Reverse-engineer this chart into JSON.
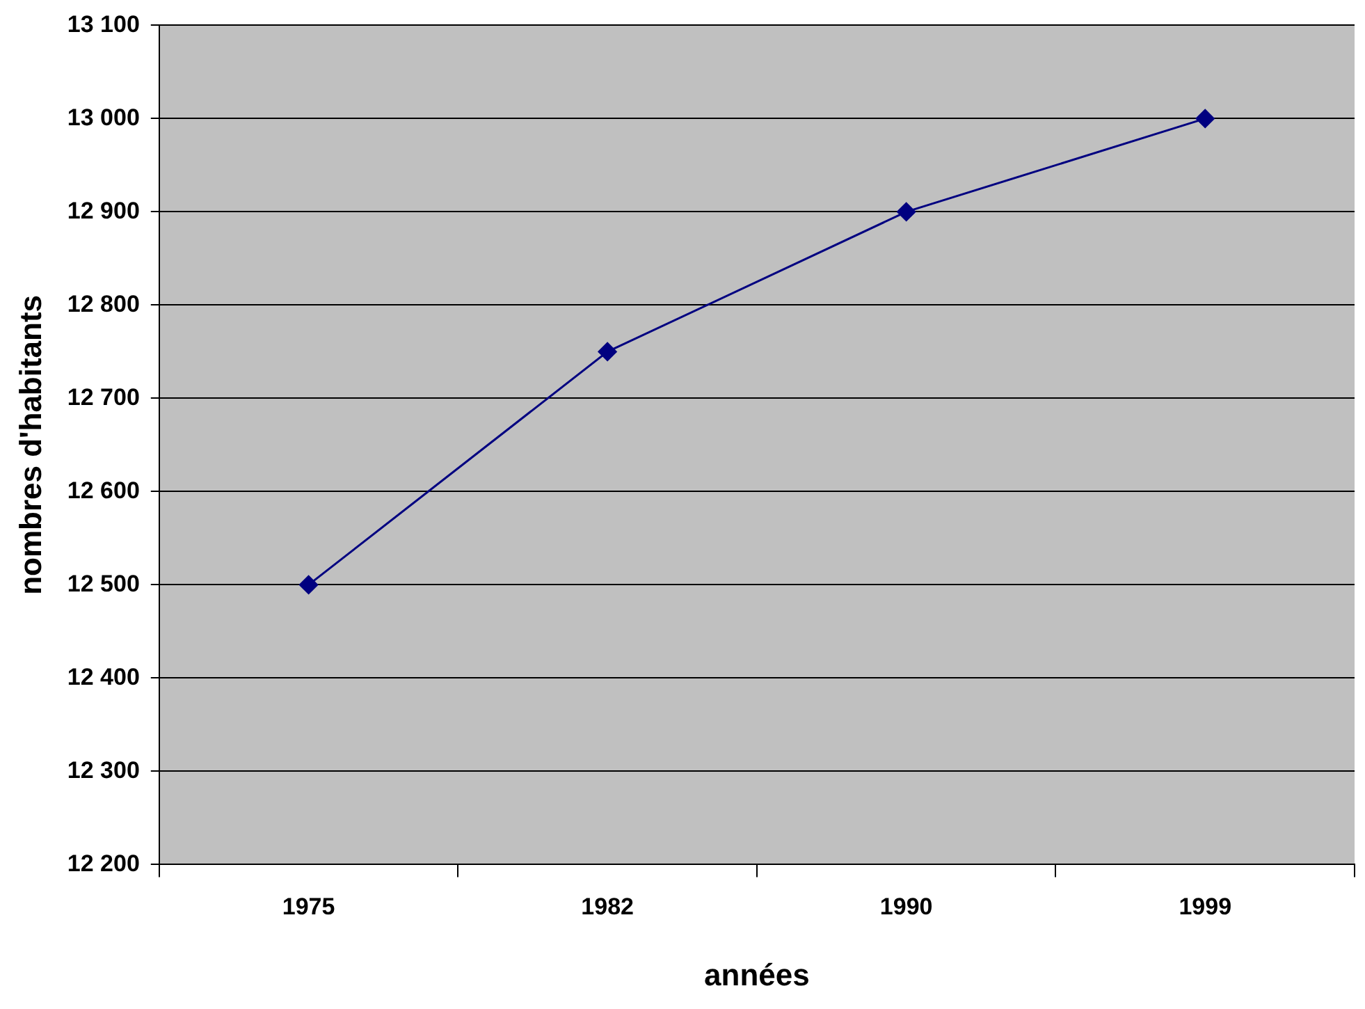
{
  "chart_data": {
    "type": "line",
    "xlabel": "années",
    "ylabel": "nombres d'habitants",
    "categories": [
      "1975",
      "1982",
      "1990",
      "1999"
    ],
    "series": [
      {
        "color": "#000080",
        "values": [
          12500,
          12750,
          12900,
          13000
        ]
      }
    ],
    "ylim": [
      12200,
      13100
    ],
    "yticks": [
      {
        "value": 12200,
        "label": "12 200"
      },
      {
        "value": 12300,
        "label": "12 300"
      },
      {
        "value": 12400,
        "label": "12 400"
      },
      {
        "value": 12500,
        "label": "12 500"
      },
      {
        "value": 12600,
        "label": "12 600"
      },
      {
        "value": 12700,
        "label": "12 700"
      },
      {
        "value": 12800,
        "label": "12 800"
      },
      {
        "value": 12900,
        "label": "12 900"
      },
      {
        "value": 13000,
        "label": "13 000"
      },
      {
        "value": 13100,
        "label": "13 100"
      }
    ],
    "grid": "y",
    "legend": false,
    "marker": "diamond",
    "line_style": "solid"
  }
}
